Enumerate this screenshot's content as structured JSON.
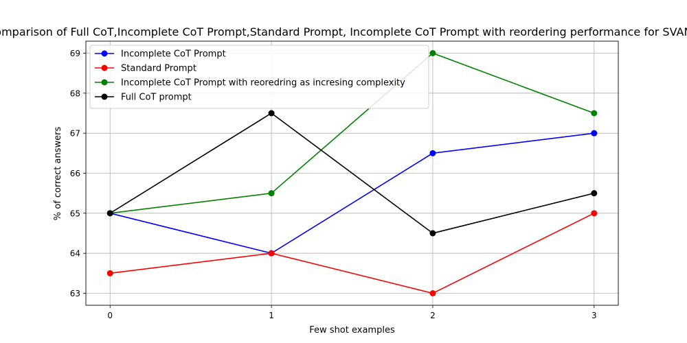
{
  "chart_data": {
    "type": "line",
    "title": "Comparison of Full CoT,Incomplete CoT Prompt,Standard Prompt, Incomplete CoT Prompt with reordering performance for SVAMP",
    "xlabel": "Few shot examples",
    "ylabel": "% of correct answers",
    "x": [
      0,
      1,
      2,
      3
    ],
    "x_ticks": [
      "0",
      "1",
      "2",
      "3"
    ],
    "y_ticks": [
      "63",
      "64",
      "65",
      "66",
      "67",
      "68",
      "69"
    ],
    "xlim": [
      -0.15,
      3.15
    ],
    "ylim": [
      62.7,
      69.3
    ],
    "grid": true,
    "legend_position": "top-left",
    "series": [
      {
        "name": "Incomplete CoT Prompt",
        "color": "#0000ff",
        "values": [
          65.0,
          64.0,
          66.5,
          67.0
        ]
      },
      {
        "name": "Standard Prompt",
        "color": "#ff0000",
        "values": [
          63.5,
          64.0,
          63.0,
          65.0
        ]
      },
      {
        "name": "Incomplete CoT Prompt with reoredring as incresing complexity",
        "color": "#008000",
        "values": [
          65.0,
          65.5,
          69.0,
          67.5
        ]
      },
      {
        "name": "Full CoT prompt",
        "color": "#000000",
        "values": [
          65.0,
          67.5,
          64.5,
          65.5
        ]
      }
    ]
  }
}
